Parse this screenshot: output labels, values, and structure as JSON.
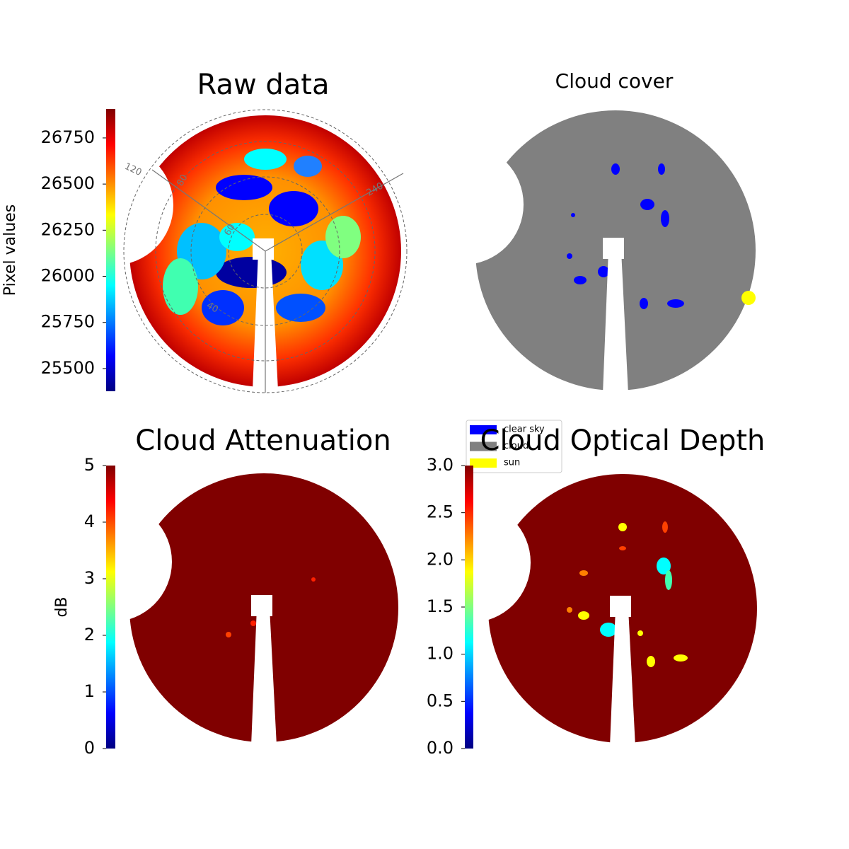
{
  "chart_data": [
    {
      "type": "image",
      "title": "Raw data",
      "colormap": "jet",
      "colorbar_label": "Pixel values",
      "clim": [
        25377,
        26907
      ],
      "cticks": [
        25500,
        25750,
        26000,
        26250,
        26500,
        26750
      ],
      "annotations": [
        "120",
        "80",
        "60",
        "40",
        "240"
      ]
    },
    {
      "type": "image",
      "title": "Cloud cover",
      "legend": [
        {
          "name": "clear sky",
          "color": "#0000ff"
        },
        {
          "name": "cloud",
          "color": "#808080"
        },
        {
          "name": "sun",
          "color": "#ffff00"
        }
      ]
    },
    {
      "type": "image",
      "title": "Cloud Attenuation",
      "colormap": "jet",
      "colorbar_label": "dB",
      "clim": [
        0,
        5
      ],
      "cticks": [
        0,
        1,
        2,
        3,
        4,
        5
      ]
    },
    {
      "type": "image",
      "title": "Cloud Optical Depth",
      "colormap": "jet",
      "clim": [
        0,
        3
      ],
      "cticks": [
        {
          "value": 0,
          "label": "0.0"
        },
        0.5,
        {
          "value": 1,
          "label": "1.0"
        },
        1.5,
        {
          "value": 2,
          "label": "2.0"
        },
        2.5,
        {
          "value": 3,
          "label": "3.0"
        }
      ]
    }
  ]
}
